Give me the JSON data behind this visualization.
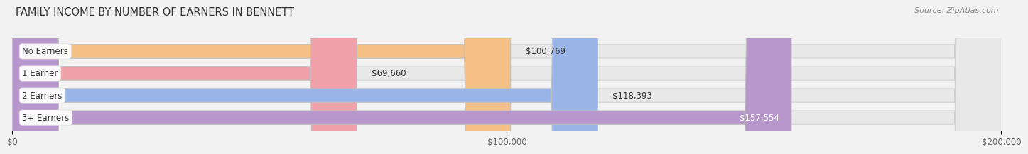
{
  "title": "FAMILY INCOME BY NUMBER OF EARNERS IN BENNETT",
  "source": "Source: ZipAtlas.com",
  "categories": [
    "No Earners",
    "1 Earner",
    "2 Earners",
    "3+ Earners"
  ],
  "values": [
    100769,
    69660,
    118393,
    157554
  ],
  "labels": [
    "$100,769",
    "$69,660",
    "$118,393",
    "$157,554"
  ],
  "bar_colors": [
    "#f5c085",
    "#f0a0a8",
    "#9ab5e8",
    "#b898cc"
  ],
  "bar_bg_color": "#e8e8e8",
  "background_color": "#f2f2f2",
  "xlim": [
    0,
    200000
  ],
  "xtick_values": [
    0,
    100000,
    200000
  ],
  "xtick_labels": [
    "$0",
    "$100,000",
    "$200,000"
  ],
  "title_fontsize": 10.5,
  "label_fontsize": 8.5,
  "tick_fontsize": 8.5,
  "source_fontsize": 8,
  "bar_height": 0.62,
  "label_color_last": "#ffffff",
  "label_color_others": "#333333",
  "grid_color": "#cccccc"
}
